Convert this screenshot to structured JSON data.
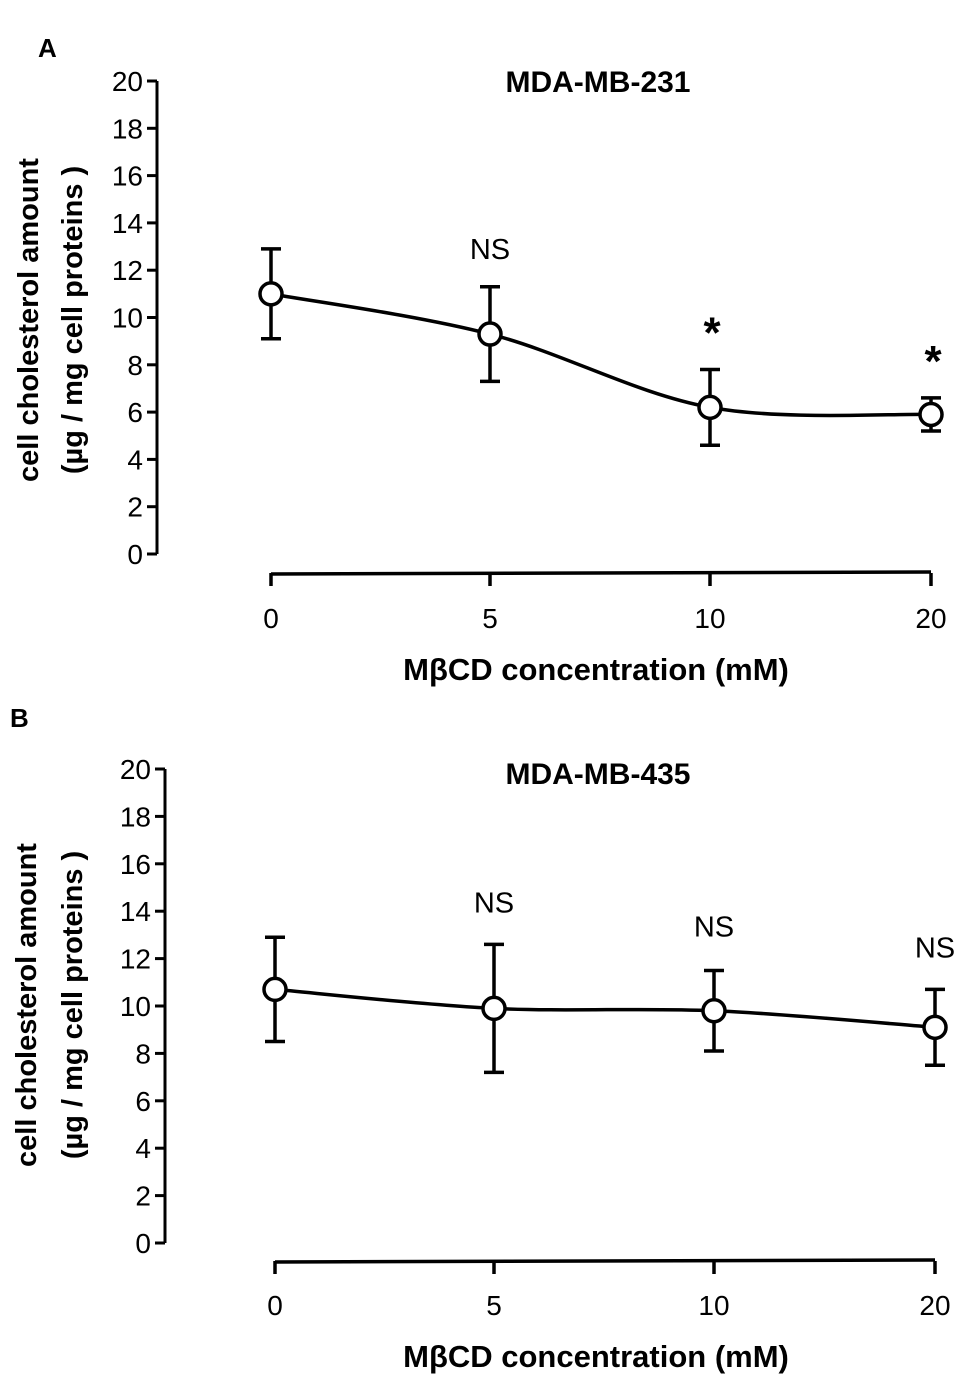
{
  "chart_data": [
    {
      "panel_label": "A",
      "type": "line",
      "title": "MDA-MB-231",
      "xlabel": "MβCD concentration (mM)",
      "ylabel": [
        "cell cholesterol amount",
        "(µg / mg cell proteins )"
      ],
      "ylim": [
        0,
        20
      ],
      "yticks": [
        "0",
        "2",
        "4",
        "6",
        "8",
        "10",
        "12",
        "14",
        "16",
        "18",
        "20"
      ],
      "categories": [
        "0",
        "5",
        "10",
        "20"
      ],
      "series": [
        {
          "name": "MDA-MB-231",
          "values": [
            11.0,
            9.3,
            6.2,
            5.9
          ],
          "error": [
            1.9,
            2.0,
            1.6,
            0.7
          ],
          "annotations": [
            "",
            "NS",
            "*",
            "*"
          ]
        }
      ]
    },
    {
      "panel_label": "B",
      "type": "line",
      "title": "MDA-MB-435",
      "xlabel": "MβCD concentration (mM)",
      "ylabel": [
        "cell cholesterol amount",
        "(µg / mg cell proteins )"
      ],
      "ylim": [
        0,
        20
      ],
      "yticks": [
        "0",
        "2",
        "4",
        "6",
        "8",
        "10",
        "12",
        "14",
        "16",
        "18",
        "20"
      ],
      "categories": [
        "0",
        "5",
        "10",
        "20"
      ],
      "series": [
        {
          "name": "MDA-MB-435",
          "values": [
            10.7,
            9.9,
            9.8,
            9.1
          ],
          "error": [
            2.2,
            2.7,
            1.7,
            1.6
          ],
          "annotations": [
            "",
            "NS",
            "NS",
            "NS"
          ]
        }
      ]
    }
  ]
}
